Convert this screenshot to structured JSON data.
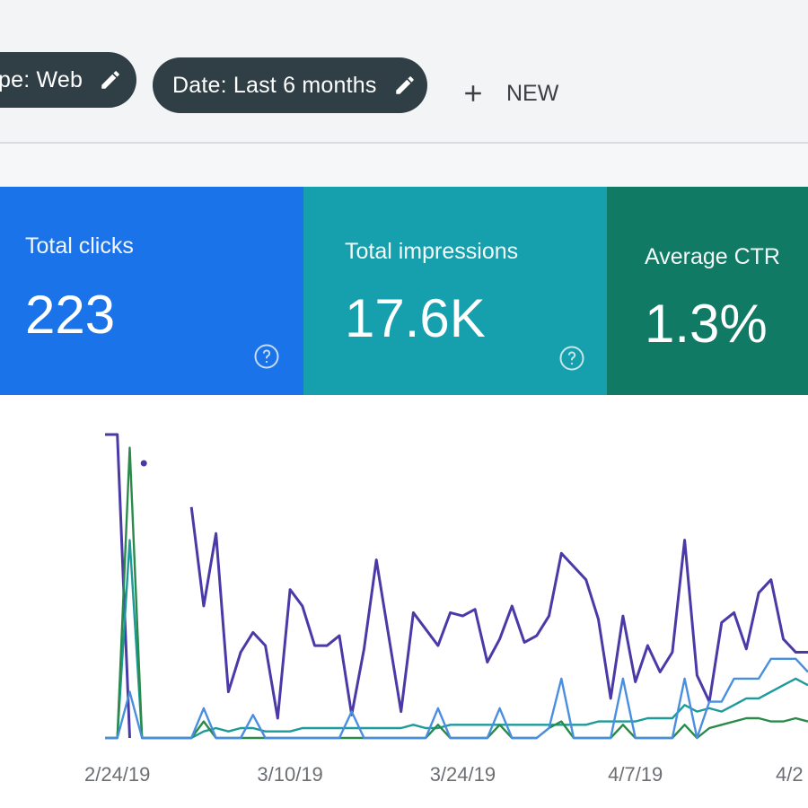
{
  "filters": {
    "type_chip": "pe: Web",
    "date_chip": "Date: Last 6 months",
    "new_button": "NEW"
  },
  "icons": {
    "edit": "pencil-icon",
    "add": "plus-icon",
    "help": "question-circle-icon"
  },
  "cards": [
    {
      "title": "Total clicks",
      "value": "223",
      "color": "#1a73e8"
    },
    {
      "title": "Total impressions",
      "value": "17.6K",
      "color": "#16a0ad"
    },
    {
      "title": "Average CTR",
      "value": "1.3%",
      "color": "#117a65"
    }
  ],
  "chart_data": {
    "type": "line",
    "x_tick_labels": [
      "2/24/19",
      "3/10/19",
      "3/24/19",
      "4/7/19",
      "4/2"
    ],
    "series": [
      {
        "color": "#4a3aa8",
        "values": [
          92,
          92,
          0,
          null,
          0,
          null,
          null,
          70,
          40,
          62,
          14,
          26,
          32,
          28,
          6,
          45,
          40,
          28,
          28,
          31,
          7,
          27,
          54,
          31,
          8,
          38,
          33,
          28,
          38,
          37,
          39,
          23,
          30,
          40,
          29,
          31,
          37,
          56,
          52,
          48,
          36,
          12,
          37,
          17,
          28,
          20,
          26,
          60,
          19,
          11,
          35,
          38,
          27,
          44,
          48,
          30,
          26,
          26
        ]
      },
      {
        "color": "#1d9a9a",
        "values": [
          0,
          0,
          60,
          0,
          0,
          0,
          0,
          0,
          2,
          3,
          2,
          3,
          3,
          2,
          2,
          2,
          3,
          3,
          3,
          3,
          3,
          3,
          3,
          3,
          3,
          4,
          3,
          3,
          4,
          4,
          4,
          4,
          4,
          4,
          4,
          4,
          4,
          4,
          4,
          4,
          5,
          5,
          5,
          5,
          6,
          6,
          6,
          10,
          8,
          9,
          8,
          10,
          12,
          12,
          14,
          16,
          18,
          16
        ]
      },
      {
        "color": "#2a8a4a",
        "values": [
          0,
          0,
          88,
          0,
          0,
          0,
          0,
          0,
          5,
          0,
          0,
          0,
          0,
          0,
          0,
          0,
          0,
          0,
          0,
          0,
          0,
          0,
          0,
          0,
          0,
          0,
          0,
          4,
          0,
          0,
          0,
          0,
          4,
          0,
          0,
          0,
          3,
          5,
          0,
          0,
          0,
          0,
          4,
          0,
          0,
          0,
          0,
          4,
          0,
          3,
          4,
          5,
          6,
          6,
          5,
          5,
          6,
          5
        ]
      },
      {
        "color": "#4a8ee0",
        "values": [
          0,
          0,
          14,
          0,
          0,
          0,
          0,
          0,
          9,
          0,
          0,
          0,
          7,
          0,
          0,
          0,
          0,
          0,
          0,
          0,
          8,
          0,
          0,
          0,
          0,
          0,
          0,
          9,
          0,
          0,
          0,
          0,
          9,
          0,
          0,
          0,
          3,
          18,
          0,
          0,
          0,
          0,
          18,
          0,
          0,
          0,
          0,
          18,
          0,
          11,
          11,
          18,
          18,
          18,
          24,
          24,
          24,
          20
        ]
      }
    ],
    "x_tick_index": [
      1,
      15,
      29,
      43,
      57
    ]
  }
}
